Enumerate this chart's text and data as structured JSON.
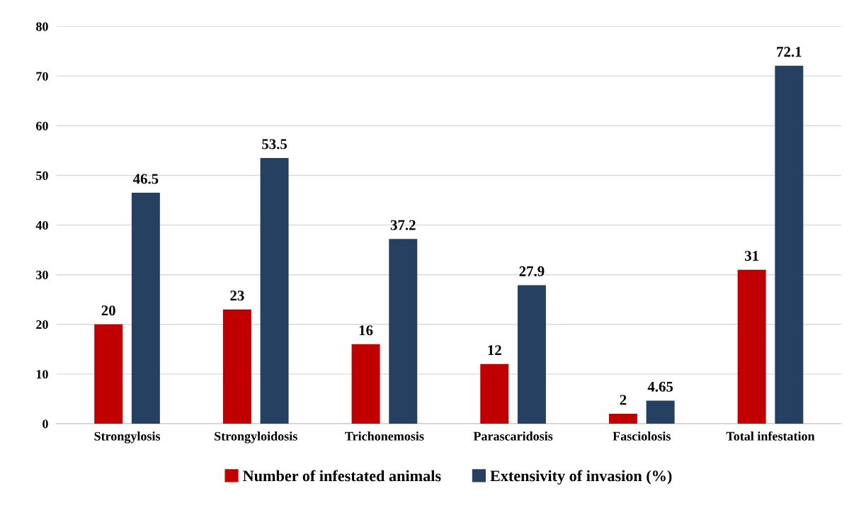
{
  "chart_data": {
    "type": "bar",
    "categories": [
      "Strongylosis",
      "Strongyloidosis",
      "Trichonemosis",
      "Parascaridosis",
      "Fasciolosis",
      "Total infestation"
    ],
    "series": [
      {
        "name": "Number of infestated animals",
        "color": "#c00000",
        "values": [
          20,
          23,
          16,
          12,
          2,
          31
        ]
      },
      {
        "name": "Extensivity of invasion (%)",
        "color": "#264061",
        "values": [
          46.5,
          53.5,
          37.2,
          27.9,
          4.65,
          72.1
        ]
      }
    ],
    "ylim": [
      0,
      80
    ],
    "yticks": [
      0,
      10,
      20,
      30,
      40,
      50,
      60,
      70,
      80
    ],
    "grid": "y",
    "legend": "bottom",
    "data_labels": true
  }
}
